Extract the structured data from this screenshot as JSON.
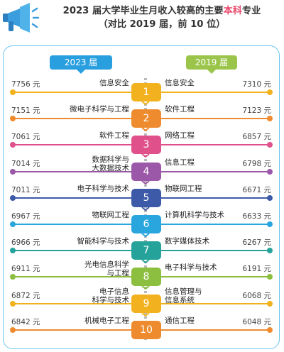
{
  "title": {
    "line1_pre": "2023 届大学毕业生月收入较高的主要",
    "line1_hl": "本科",
    "line1_post": "专业",
    "line2": "（对比 2019 届，前 10 位）"
  },
  "chart_data": {
    "type": "table",
    "left_header": "2023 届",
    "right_header": "2019 届",
    "rows": [
      {
        "rank": "1",
        "left_major": "信息安全",
        "left_value": "7756 元",
        "right_major": "信息安全",
        "right_value": "7310 元",
        "color": "#f2b21f"
      },
      {
        "rank": "2",
        "left_major": "微电子科学与工程",
        "left_value": "7151 元",
        "right_major": "软件工程",
        "right_value": "7123 元",
        "color": "#ee8b2e"
      },
      {
        "rank": "3",
        "left_major": "软件工程",
        "left_value": "7061 元",
        "right_major": "网络工程",
        "right_value": "6857 元",
        "color": "#e0518c"
      },
      {
        "rank": "4",
        "left_major": "数据科学与\n大数据技术",
        "left_value": "7014 元",
        "right_major": "信息工程",
        "right_value": "6798 元",
        "color": "#9b58a8"
      },
      {
        "rank": "5",
        "left_major": "电子科学与技术",
        "left_value": "7011 元",
        "right_major": "物联网工程",
        "right_value": "6671 元",
        "color": "#3d5aa8"
      },
      {
        "rank": "6",
        "left_major": "物联网工程",
        "left_value": "6967 元",
        "right_major": "计算机科学与技术",
        "right_value": "6633 元",
        "color": "#2aa6df"
      },
      {
        "rank": "7",
        "left_major": "智能科学与技术",
        "left_value": "6966 元",
        "right_major": "数字媒体技术",
        "right_value": "6267 元",
        "color": "#25a39b"
      },
      {
        "rank": "8",
        "left_major": "光电信息科学\n与工程",
        "left_value": "6911 元",
        "right_major": "电子科学与技术",
        "right_value": "6191 元",
        "color": "#8cbf3f"
      },
      {
        "rank": "9",
        "left_major": "电子信息\n科学与技术",
        "left_value": "6872 元",
        "right_major": "信息管理与\n信息系统",
        "right_value": "6068 元",
        "color": "#f2b21f"
      },
      {
        "rank": "10",
        "left_major": "机械电子工程",
        "left_value": "6842 元",
        "right_major": "通信工程",
        "right_value": "6048 元",
        "color": "#ee8b2e"
      }
    ]
  },
  "colors": {
    "title_highlight": "#e94a6f",
    "panel_border": "#6ec6ee",
    "tag_2023": "#2a9fdf",
    "tag_2019": "#9bc54a"
  },
  "icons": {
    "megaphone": "megaphone-icon"
  }
}
